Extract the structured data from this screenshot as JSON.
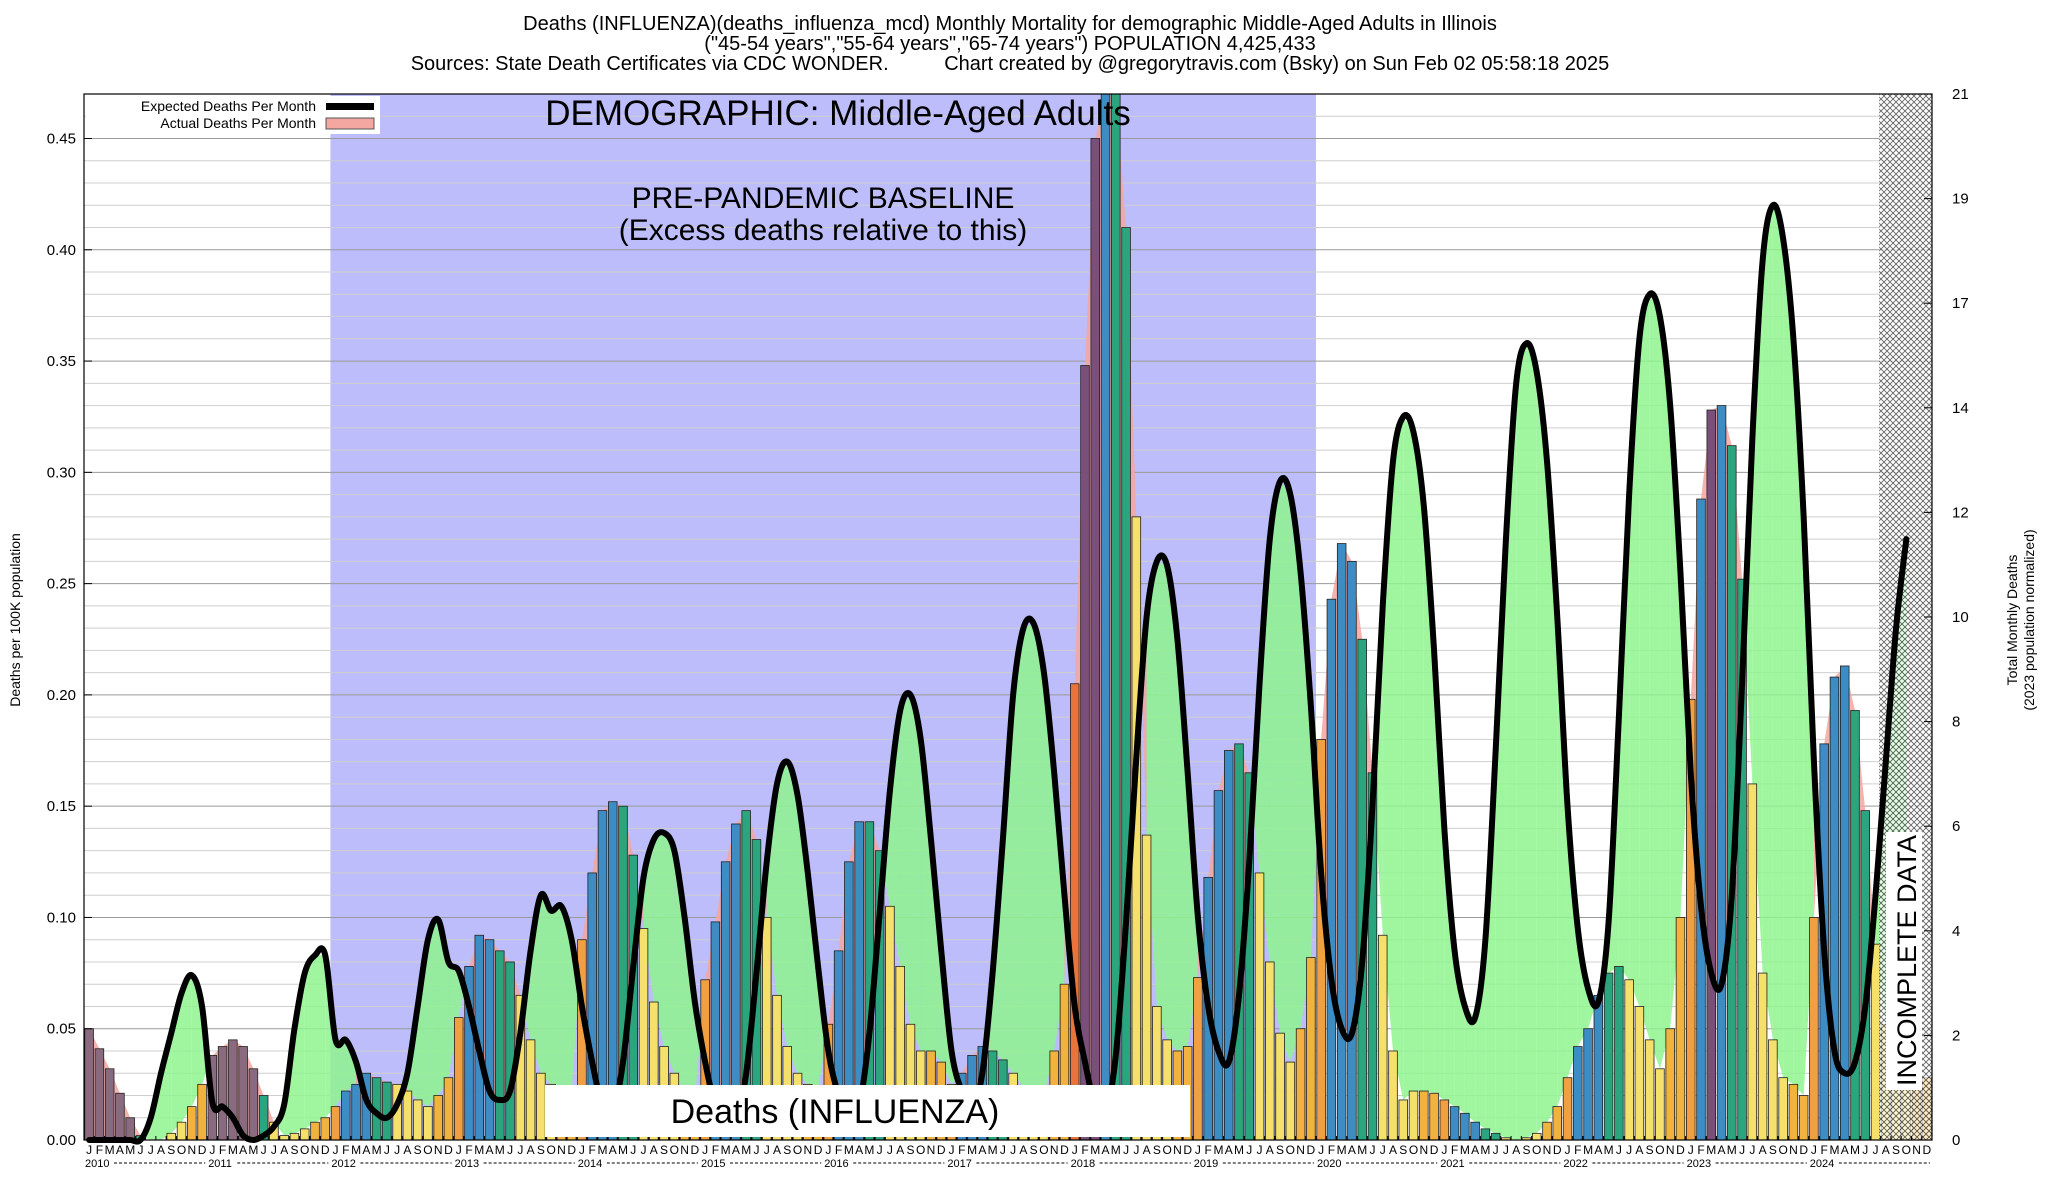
{
  "chart_data": {
    "type": "bar",
    "title_lines": [
      "Deaths (INFLUENZA)(deaths_influenza_mcd) Monthly Mortality for demographic Middle-Aged Adults in Illinois",
      "(\"45-54 years\",\"55-64 years\",\"65-74 years\") POPULATION 4,425,433",
      "Sources: State Death Certificates via CDC WONDER.          Chart created by @gregorytravis.com (Bsky) on Sun Feb 02 05:58:18 2025"
    ],
    "ylabel_left": "Deaths per 100K population",
    "ylabel_right_lines": [
      "Total Monthly Deaths",
      "(2023 population normalized)"
    ],
    "ylim": [
      0,
      0.47
    ],
    "y_ticks": [
      "0.00",
      "0.05",
      "0.10",
      "0.15",
      "0.20",
      "0.25",
      "0.30",
      "0.35",
      "0.40",
      "0.45"
    ],
    "y_ticks_right": [
      "0",
      "2",
      "4",
      "6",
      "8",
      "10",
      "12",
      "14",
      "17",
      "19",
      "21"
    ],
    "grid": true,
    "legend_position": "top-left",
    "legend": [
      {
        "label": "Expected Deaths Per Month",
        "color": "#000000"
      },
      {
        "label": "Actual Deaths Per Month",
        "color": "#f4a6a0"
      }
    ],
    "annotations": {
      "demographic": "DEMOGRAPHIC: Middle-Aged Adults",
      "baseline_line1": "PRE-PANDEMIC BASELINE",
      "baseline_line2": "(Excess deaths relative to this)",
      "cause": "Deaths (INFLUENZA)",
      "incomplete": "INCOMPLETE DATA"
    },
    "years": [
      "2010",
      "2011",
      "2012",
      "2013",
      "2014",
      "2015",
      "2016",
      "2017",
      "2018",
      "2019",
      "2020",
      "2021",
      "2022",
      "2023",
      "2024"
    ],
    "month_letters": [
      "J",
      "F",
      "M",
      "A",
      "M",
      "J",
      "J",
      "A",
      "S",
      "O",
      "N",
      "D"
    ],
    "baseline_period": {
      "start": "2012-01",
      "end": "2019-12"
    },
    "incomplete_period": {
      "start": "2024-08",
      "end": "2024-12"
    },
    "actual_monthly": [
      0.05,
      0.041,
      0.032,
      0.021,
      0.01,
      0.002,
      0.0,
      0.0,
      0.003,
      0.008,
      0.015,
      0.025,
      0.038,
      0.042,
      0.045,
      0.042,
      0.032,
      0.02,
      0.008,
      0.002,
      0.003,
      0.005,
      0.008,
      0.01,
      0.015,
      0.022,
      0.025,
      0.03,
      0.028,
      0.026,
      0.025,
      0.022,
      0.018,
      0.015,
      0.02,
      0.028,
      0.055,
      0.078,
      0.092,
      0.09,
      0.085,
      0.08,
      0.065,
      0.045,
      0.03,
      0.025,
      0.023,
      0.022,
      0.09,
      0.12,
      0.148,
      0.152,
      0.15,
      0.128,
      0.095,
      0.062,
      0.042,
      0.03,
      0.022,
      0.018,
      0.072,
      0.098,
      0.125,
      0.142,
      0.148,
      0.135,
      0.1,
      0.065,
      0.042,
      0.03,
      0.025,
      0.022,
      0.052,
      0.085,
      0.125,
      0.143,
      0.143,
      0.13,
      0.105,
      0.078,
      0.052,
      0.04,
      0.04,
      0.035,
      0.025,
      0.03,
      0.038,
      0.042,
      0.04,
      0.036,
      0.03,
      0.024,
      0.02,
      0.02,
      0.04,
      0.07,
      0.205,
      0.348,
      0.45,
      0.47,
      0.47,
      0.41,
      0.28,
      0.137,
      0.06,
      0.045,
      0.04,
      0.042,
      0.073,
      0.118,
      0.157,
      0.175,
      0.178,
      0.165,
      0.12,
      0.08,
      0.048,
      0.035,
      0.05,
      0.082,
      0.18,
      0.243,
      0.268,
      0.26,
      0.225,
      0.165,
      0.092,
      0.04,
      0.018,
      0.022,
      0.022,
      0.021,
      0.018,
      0.015,
      0.012,
      0.008,
      0.005,
      0.003,
      0.001,
      0.0,
      0.001,
      0.003,
      0.008,
      0.015,
      0.028,
      0.042,
      0.05,
      0.065,
      0.075,
      0.078,
      0.072,
      0.06,
      0.045,
      0.032,
      0.05,
      0.1,
      0.198,
      0.288,
      0.328,
      0.33,
      0.312,
      0.252,
      0.16,
      0.075,
      0.045,
      0.028,
      0.025,
      0.02,
      0.1,
      0.178,
      0.208,
      0.213,
      0.193,
      0.148,
      0.088,
      0.052,
      0.04,
      0.035,
      0.03,
      0.028
    ],
    "expected_monthly": [
      0.0,
      0.0,
      0.0,
      0.0,
      0.0,
      0.0,
      0.01,
      0.03,
      0.048,
      0.066,
      0.074,
      0.06,
      0.017,
      0.015,
      0.01,
      0.002,
      0.0,
      0.002,
      0.006,
      0.016,
      0.05,
      0.075,
      0.083,
      0.083,
      0.045,
      0.045,
      0.035,
      0.018,
      0.012,
      0.01,
      0.016,
      0.03,
      0.06,
      0.09,
      0.099,
      0.08,
      0.076,
      0.06,
      0.04,
      0.022,
      0.018,
      0.022,
      0.048,
      0.085,
      0.11,
      0.103,
      0.105,
      0.09,
      0.06,
      0.035,
      0.015,
      0.012,
      0.035,
      0.078,
      0.118,
      0.135,
      0.138,
      0.13,
      0.1,
      0.062,
      0.035,
      0.015,
      0.005,
      0.008,
      0.03,
      0.075,
      0.125,
      0.16,
      0.17,
      0.155,
      0.12,
      0.078,
      0.04,
      0.02,
      0.008,
      0.015,
      0.048,
      0.102,
      0.157,
      0.193,
      0.2,
      0.18,
      0.135,
      0.085,
      0.04,
      0.022,
      0.015,
      0.03,
      0.075,
      0.135,
      0.2,
      0.23,
      0.232,
      0.21,
      0.165,
      0.11,
      0.06,
      0.035,
      0.015,
      0.012,
      0.038,
      0.098,
      0.172,
      0.235,
      0.26,
      0.258,
      0.225,
      0.165,
      0.1,
      0.06,
      0.04,
      0.035,
      0.065,
      0.125,
      0.205,
      0.27,
      0.296,
      0.29,
      0.255,
      0.195,
      0.12,
      0.072,
      0.05,
      0.048,
      0.08,
      0.15,
      0.24,
      0.305,
      0.325,
      0.318,
      0.285,
      0.22,
      0.14,
      0.085,
      0.06,
      0.055,
      0.09,
      0.175,
      0.27,
      0.34,
      0.358,
      0.345,
      0.305,
      0.235,
      0.15,
      0.095,
      0.068,
      0.062,
      0.098,
      0.19,
      0.29,
      0.36,
      0.38,
      0.37,
      0.33,
      0.255,
      0.165,
      0.105,
      0.075,
      0.07,
      0.11,
      0.205,
      0.315,
      0.395,
      0.42,
      0.405,
      0.36,
      0.28,
      0.17,
      0.085,
      0.04,
      0.03,
      0.035,
      0.06,
      0.11,
      0.17,
      0.23,
      0.27
    ]
  }
}
